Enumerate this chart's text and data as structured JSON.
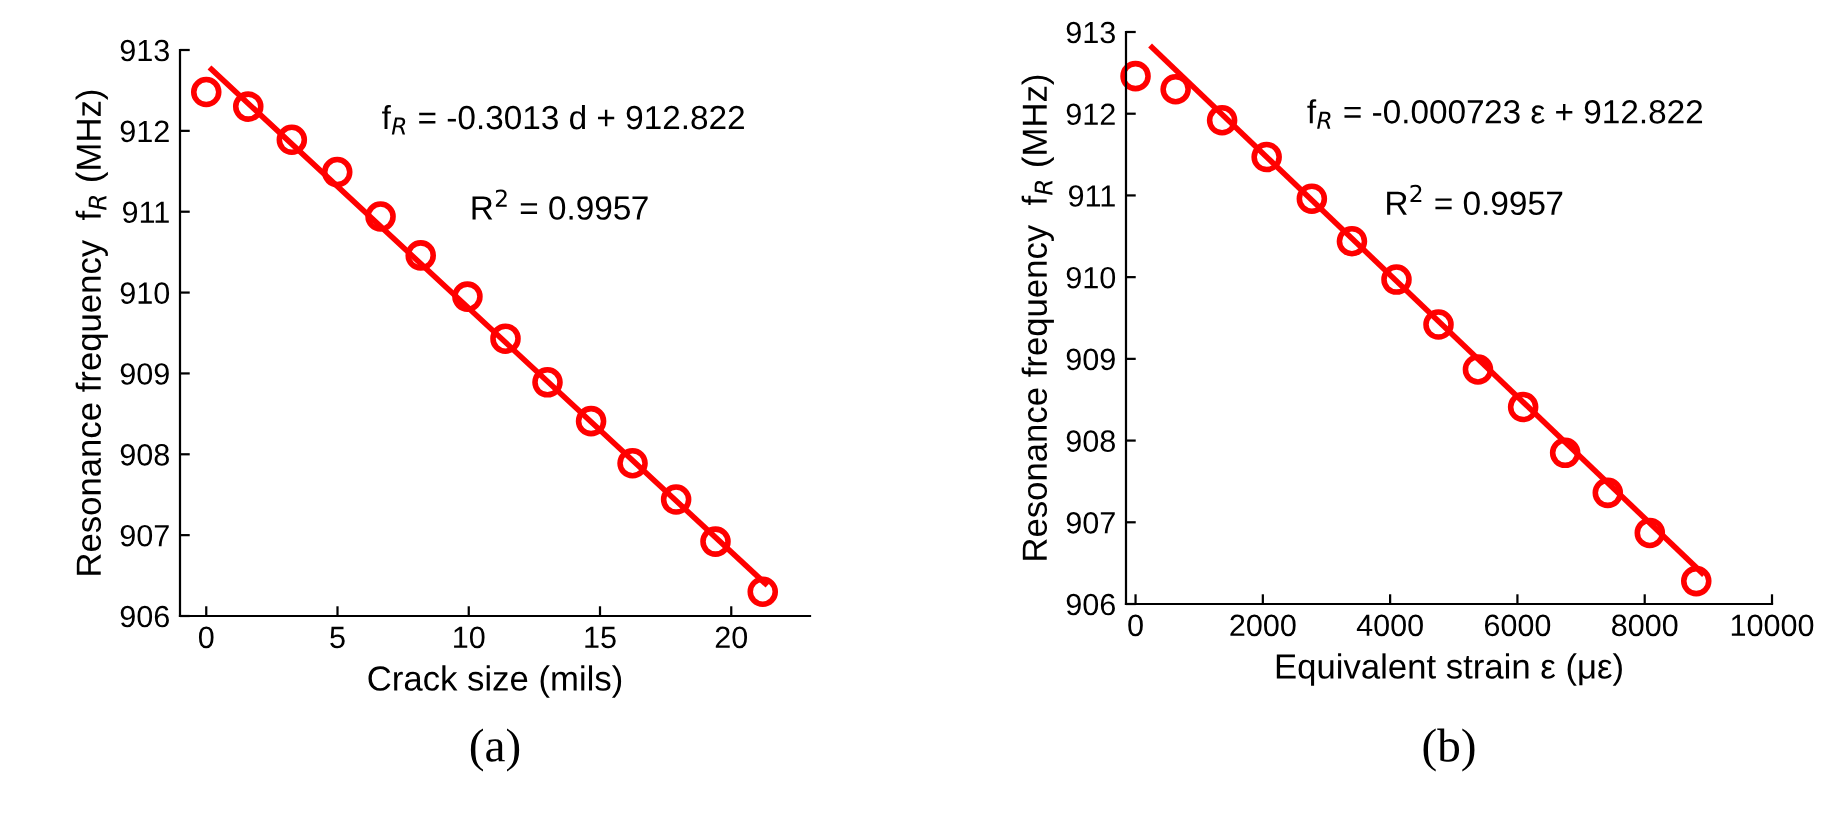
{
  "chart_data": [
    {
      "type": "scatter",
      "xlabel": "Crack size (mils)",
      "ylabel": "Resonance frequency  f$_{R}$ (MHz)",
      "marker": "circle",
      "xlim": [
        -1,
        23
      ],
      "ylim": [
        906,
        913
      ],
      "xticks": [
        0,
        5,
        10,
        15,
        20
      ],
      "yticks": [
        906,
        907,
        908,
        909,
        910,
        911,
        912,
        913
      ],
      "series": [
        {
          "color": "#ff0000",
          "x": [
            0,
            1.6,
            3.26,
            4.99,
            6.64,
            8.17,
            9.95,
            11.4,
            13.0,
            14.66,
            16.24,
            17.9,
            19.4,
            21.2
          ],
          "values": [
            912.48,
            912.3,
            911.89,
            911.49,
            910.94,
            910.46,
            909.95,
            909.43,
            908.89,
            908.41,
            907.89,
            907.44,
            906.92,
            906.3
          ]
        },
        {
          "type": "line",
          "marker": "none",
          "color": "#ff0000",
          "x": [
            0.2,
            21.3
          ],
          "values": [
            912.76,
            906.4
          ]
        }
      ],
      "annotations": [
        "f$_{R}$ = -0.3013 d + 912.822",
        "R$^{2}$ = 0.9957",
        "(a)"
      ]
    },
    {
      "type": "scatter",
      "xlabel": "Equivalent strain ε (με)",
      "ylabel": "Resonance frequency  f$_{R}$ (MHz)",
      "marker": "circle",
      "xlim": [
        -150,
        10000
      ],
      "ylim": [
        906,
        913
      ],
      "xticks": [
        0,
        2000,
        4000,
        6000,
        8000,
        10000
      ],
      "yticks": [
        906,
        907,
        908,
        909,
        910,
        911,
        912,
        913
      ],
      "series": [
        {
          "color": "#ff0000",
          "x": [
            0,
            630,
            1360,
            2060,
            2770,
            3400,
            4100,
            4760,
            5380,
            6090,
            6750,
            7420,
            8080,
            8810
          ],
          "values": [
            912.46,
            912.3,
            911.92,
            911.47,
            910.96,
            910.44,
            909.97,
            909.42,
            908.87,
            908.41,
            907.85,
            907.36,
            906.87,
            906.28
          ]
        },
        {
          "type": "line",
          "marker": "none",
          "color": "#ff0000",
          "x": [
            260,
            8900
          ],
          "values": [
            912.81,
            906.38
          ]
        }
      ],
      "annotations": [
        "f$_{R}$ = -0.000723 ε + 912.822",
        "R$^{2}$ = 0.9957",
        "(b)"
      ]
    }
  ]
}
